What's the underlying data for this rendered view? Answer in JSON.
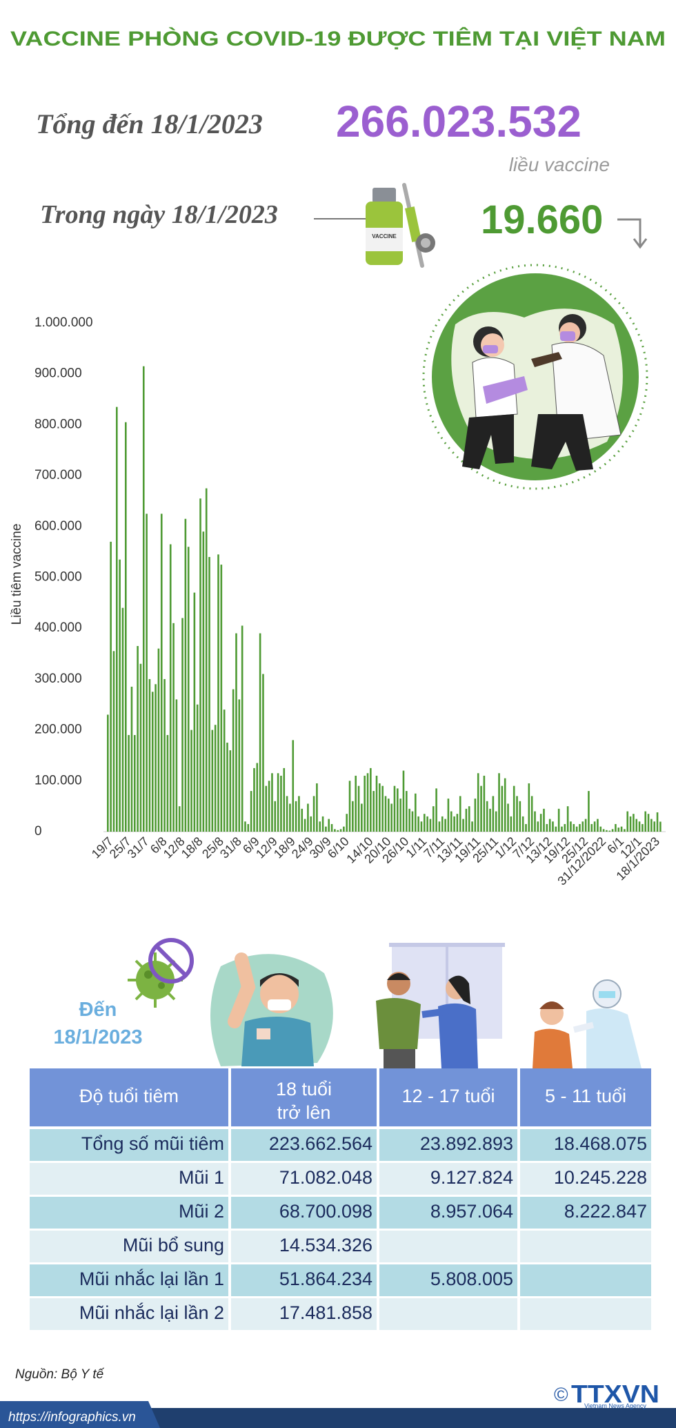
{
  "header": {
    "title": "VACCINE PHÒNG COVID-19 ĐƯỢC TIÊM TẠI VIỆT NAM",
    "total_label": "Tổng đến 18/1/2023",
    "total_value": "266.023.532",
    "total_unit": "liều vaccine",
    "day_label": "Trong ngày 18/1/2023",
    "day_value": "19.660",
    "vial_label": "VACCINE"
  },
  "chart_data": {
    "type": "bar",
    "y_label": "Liều tiêm vaccine",
    "color": "#4e9a33",
    "grid": false,
    "categories": [
      null,
      null,
      "19/7",
      null,
      null,
      null,
      null,
      null,
      "25/7",
      null,
      null,
      null,
      null,
      null,
      "31/7",
      null,
      null,
      null,
      null,
      null,
      "6/8",
      null,
      null,
      null,
      null,
      null,
      "12/8",
      null,
      null,
      null,
      null,
      null,
      "18/8",
      null,
      null,
      null,
      null,
      null,
      null,
      "25/8",
      null,
      null,
      null,
      null,
      null,
      "31/8",
      null,
      null,
      null,
      null,
      null,
      "6/9",
      null,
      null,
      null,
      null,
      null,
      "12/9",
      null,
      null,
      null,
      null,
      null,
      "18/9",
      null,
      null,
      null,
      null,
      null,
      "24/9",
      null,
      null,
      null,
      null,
      null,
      "30/9",
      null,
      null,
      null,
      null,
      null,
      "6/10",
      null,
      null,
      null,
      null,
      null,
      null,
      null,
      "14/10",
      null,
      null,
      null,
      null,
      null,
      "20/10",
      null,
      null,
      null,
      null,
      null,
      "26/10",
      null,
      null,
      null,
      null,
      null,
      "1/11",
      null,
      null,
      null,
      null,
      null,
      "7/11",
      null,
      null,
      null,
      null,
      null,
      "13/11",
      null,
      null,
      null,
      null,
      null,
      "19/11",
      null,
      null,
      null,
      null,
      null,
      "25/11",
      null,
      null,
      null,
      null,
      null,
      "1/12",
      null,
      null,
      null,
      null,
      null,
      "7/12",
      null,
      null,
      null,
      null,
      null,
      "13/12",
      null,
      null,
      null,
      null,
      null,
      "19/12",
      null,
      null,
      null,
      null,
      null,
      "25/12",
      null,
      null,
      null,
      null,
      null,
      "31/12/2022",
      null,
      null,
      null,
      null,
      null,
      "6/1",
      null,
      null,
      null,
      null,
      null,
      "12/1",
      null,
      null,
      null,
      null,
      null,
      "18/1/2023"
    ],
    "values": [
      230000,
      570000,
      355000,
      835000,
      535000,
      440000,
      805000,
      190000,
      285000,
      190000,
      365000,
      330000,
      915000,
      625000,
      300000,
      275000,
      290000,
      360000,
      625000,
      300000,
      190000,
      565000,
      410000,
      260000,
      50000,
      420000,
      615000,
      560000,
      200000,
      470000,
      250000,
      655000,
      590000,
      675000,
      540000,
      200000,
      210000,
      545000,
      525000,
      240000,
      175000,
      160000,
      280000,
      390000,
      260000,
      405000,
      20000,
      15000,
      80000,
      125000,
      135000,
      390000,
      310000,
      90000,
      100000,
      115000,
      60000,
      115000,
      110000,
      125000,
      70000,
      55000,
      180000,
      60000,
      70000,
      45000,
      25000,
      55000,
      30000,
      70000,
      95000,
      20000,
      30000,
      10000,
      25000,
      15000,
      5000,
      3000,
      5000,
      10000,
      35000,
      100000,
      60000,
      110000,
      90000,
      55000,
      110000,
      115000,
      125000,
      80000,
      110000,
      95000,
      90000,
      70000,
      65000,
      55000,
      90000,
      85000,
      65000,
      120000,
      80000,
      45000,
      40000,
      75000,
      30000,
      20000,
      35000,
      30000,
      25000,
      50000,
      85000,
      20000,
      30000,
      25000,
      65000,
      40000,
      30000,
      35000,
      70000,
      25000,
      45000,
      50000,
      20000,
      65000,
      115000,
      90000,
      110000,
      60000,
      45000,
      70000,
      40000,
      115000,
      90000,
      105000,
      55000,
      30000,
      90000,
      70000,
      60000,
      30000,
      15000,
      95000,
      70000,
      40000,
      20000,
      35000,
      45000,
      15000,
      25000,
      20000,
      10000,
      45000,
      10000,
      15000,
      50000,
      20000,
      15000,
      10000,
      15000,
      20000,
      25000,
      80000,
      15000,
      20000,
      25000,
      10000,
      5000,
      3000,
      2000,
      5000,
      15000,
      8000,
      10000,
      5000,
      40000,
      30000,
      35000,
      25000,
      20000,
      15000,
      40000,
      35000,
      25000,
      20000,
      38000,
      19660
    ],
    "ylim": [
      0,
      1000000
    ],
    "yticks": [
      0,
      {
        "value": 100000,
        "label": "100.000"
      },
      {
        "value": 200000,
        "label": "200.000"
      },
      {
        "value": 300000,
        "label": "300.000"
      },
      {
        "value": 400000,
        "label": "400.000"
      },
      {
        "value": 500000,
        "label": "500.000"
      },
      {
        "value": 600000,
        "label": "600.000"
      },
      {
        "value": 700000,
        "label": "700.000"
      },
      {
        "value": 800000,
        "label": "800.000"
      },
      {
        "value": 900000,
        "label": "900.000"
      },
      {
        "value": 1000000,
        "label": "1.000.000"
      }
    ]
  },
  "table": {
    "caption": [
      "Đến",
      "18/1/2023"
    ],
    "header": [
      "Độ tuổi tiêm",
      [
        "18 tuổi",
        "trở lên"
      ],
      "12 - 17 tuổi",
      "5 - 11 tuổi"
    ],
    "rows": [
      [
        "Tổng số mũi tiêm",
        "223.662.564",
        "23.892.893",
        "18.468.075"
      ],
      [
        "Mũi 1",
        "71.082.048",
        "9.127.824",
        "10.245.228"
      ],
      [
        "Mũi 2",
        "68.700.098",
        "8.957.064",
        "8.222.847"
      ],
      [
        "Mũi bổ sung",
        "14.534.326"
      ],
      [
        "Mũi nhắc lại lần 1",
        "51.864.234",
        "5.808.005"
      ],
      [
        "Mũi nhắc lại lần 2",
        "17.481.858"
      ]
    ]
  },
  "footer": {
    "source": "Nguồn: Bộ Y tế",
    "url": "https://infographics.vn",
    "copyright": "©",
    "logo": "TTXVN",
    "logo_sub": "Vietnam News Agency"
  }
}
